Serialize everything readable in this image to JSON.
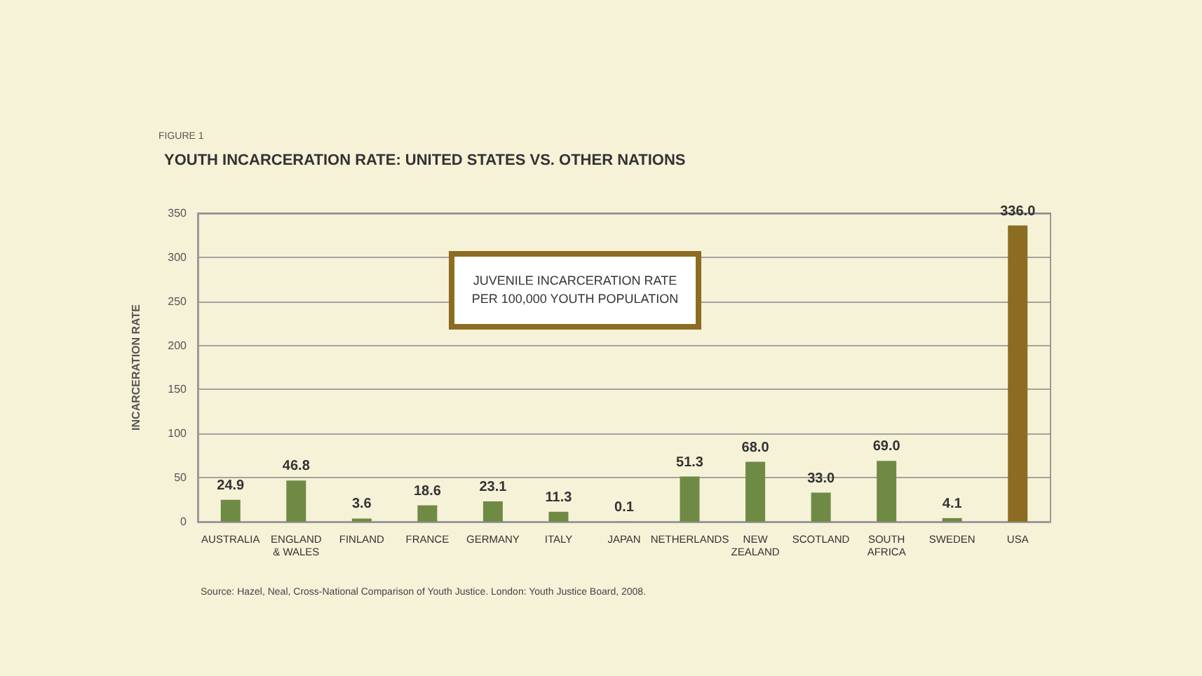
{
  "chart_data": {
    "type": "bar",
    "title": "YOUTH INCARCERATION RATE: UNITED STATES VS. OTHER NATIONS",
    "ylabel": "INCARCERATION RATE",
    "categories": [
      "AUSTRALIA",
      "ENGLAND\n& WALES",
      "FINLAND",
      "FRANCE",
      "GERMANY",
      "ITALY",
      "JAPAN",
      "NETHERLANDS",
      "NEW\nZEALAND",
      "SCOTLAND",
      "SOUTH\nAFRICA",
      "SWEDEN",
      "USA"
    ],
    "values": [
      24.9,
      46.8,
      3.6,
      18.6,
      23.1,
      11.3,
      0.1,
      51.3,
      68,
      33,
      69,
      4.1,
      336
    ],
    "value_labels": [
      "24.9",
      "46.8",
      "3.6",
      "18.6",
      "23.1",
      "11.3",
      "0.1",
      "51.3",
      "68.0",
      "33.0",
      "69.0",
      "4.1",
      "336.0"
    ],
    "colors": [
      "#6f8a45",
      "#6f8a45",
      "#6f8a45",
      "#6f8a45",
      "#6f8a45",
      "#6f8a45",
      "#6f8a45",
      "#6f8a45",
      "#6f8a45",
      "#6f8a45",
      "#6f8a45",
      "#6f8a45",
      "#8c6c22"
    ],
    "ylim": [
      0,
      350
    ],
    "yticks": [
      0,
      50,
      100,
      150,
      200,
      250,
      300,
      350
    ],
    "grid": "y",
    "annotations": [
      "FIGURE 1",
      "JUVENILE INCARCERATION RATE\nPER 100,000 YOUTH POPULATION",
      "Source: Hazel, Neal, Cross-National Comparison of Youth Justice. London: Youth Justice Board, 2008."
    ]
  }
}
